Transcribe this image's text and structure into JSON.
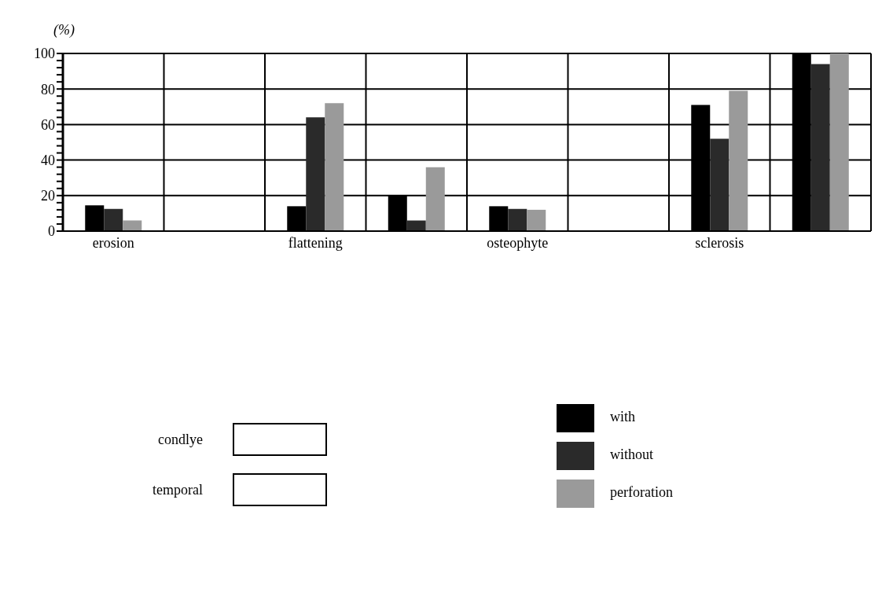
{
  "chart_data": {
    "type": "bar",
    "ylabel": "(%)",
    "categories": [
      "erosion",
      null,
      "flattening",
      null,
      "osteophyte",
      null,
      "sclerosis",
      null
    ],
    "series": [
      {
        "name": "with",
        "color": "#000000",
        "values": [
          14.5,
          0,
          14,
          20,
          14,
          0,
          71,
          100
        ]
      },
      {
        "name": "without",
        "color": "#2a2a2a",
        "values": [
          12.5,
          0,
          64,
          6,
          12.5,
          0,
          52,
          94
        ]
      },
      {
        "name": "perforation",
        "color": "#9a9a9a",
        "values": [
          6,
          0,
          72,
          36,
          12,
          0,
          79,
          100
        ]
      }
    ],
    "ylim": [
      0,
      100
    ],
    "yticks": [
      0,
      {
        "value": 4,
        "label": null
      },
      {
        "value": 8,
        "label": null
      },
      {
        "value": 12,
        "label": null
      },
      {
        "value": 16,
        "label": null
      },
      20,
      {
        "value": 24,
        "label": null
      },
      {
        "value": 28,
        "label": null
      },
      {
        "value": 32,
        "label": null
      },
      {
        "value": 36,
        "label": null
      },
      40,
      {
        "value": 44,
        "label": null
      },
      {
        "value": 48,
        "label": null
      },
      {
        "value": 52,
        "label": null
      },
      {
        "value": 56,
        "label": null
      },
      60,
      {
        "value": 64,
        "label": null
      },
      {
        "value": 68,
        "label": null
      },
      {
        "value": 72,
        "label": null
      },
      {
        "value": 76,
        "label": null
      },
      80,
      {
        "value": 84,
        "label": null
      },
      {
        "value": 88,
        "label": null
      },
      {
        "value": 92,
        "label": null
      },
      {
        "value": 96,
        "label": null
      },
      100
    ],
    "grid": true,
    "legend": "bottom",
    "annotations": [
      "condlye",
      "temporal"
    ]
  }
}
